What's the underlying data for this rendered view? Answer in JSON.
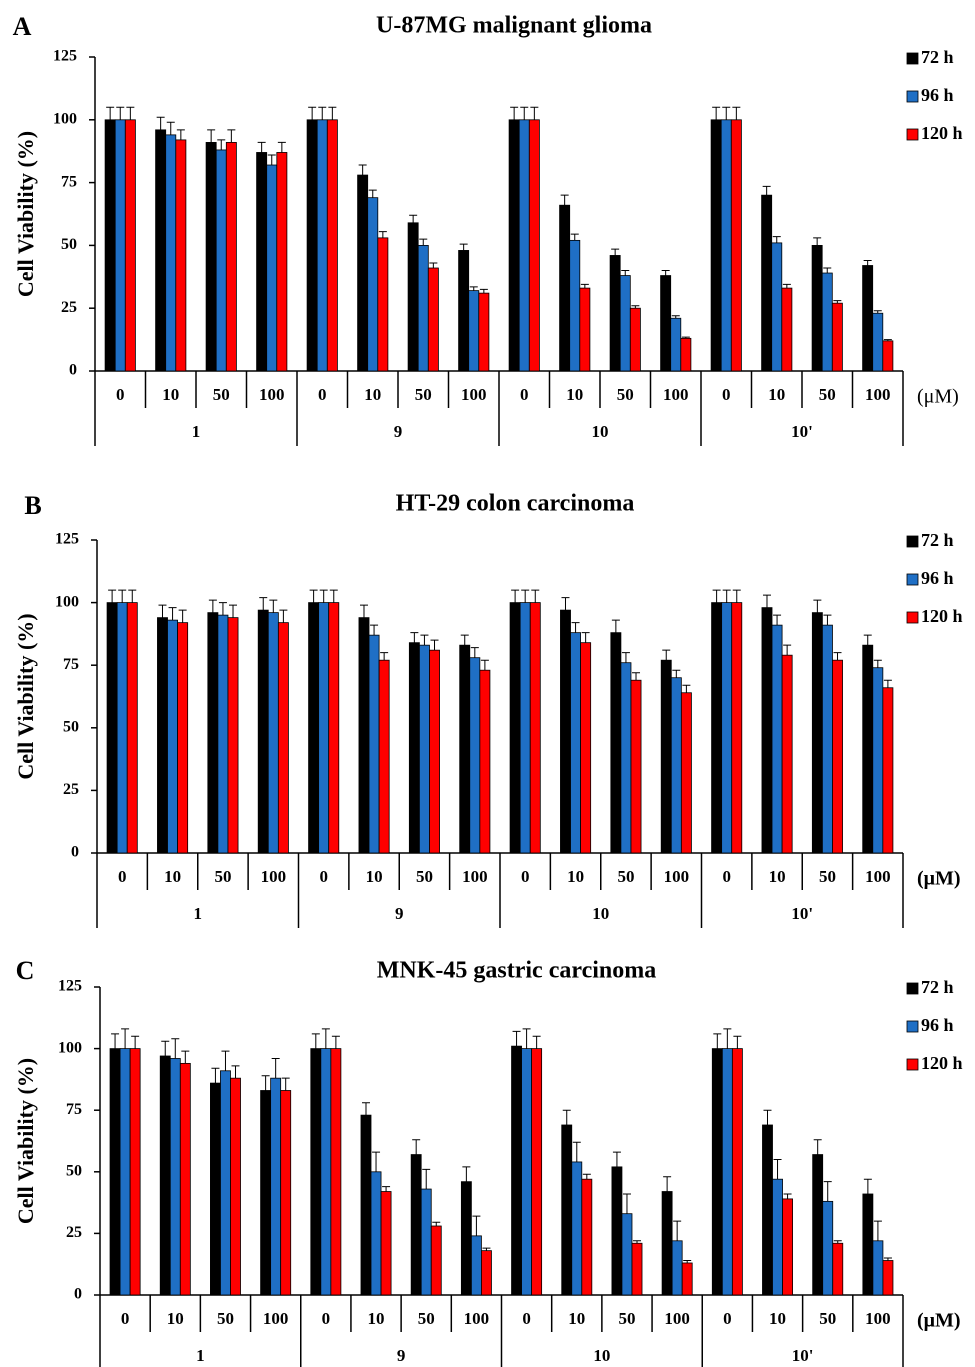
{
  "chart_data": [
    {
      "type": "bar",
      "panel": "A",
      "title": "U-87MG malignant glioma",
      "ylabel": "Cell Viability (%)",
      "unit": "(μM)",
      "unit_bold": false,
      "categories": [
        "0",
        "10",
        "50",
        "100",
        "0",
        "10",
        "50",
        "100",
        "0",
        "10",
        "50",
        "100",
        "0",
        "10",
        "50",
        "100"
      ],
      "groups": [
        "1",
        "9",
        "10",
        "10'"
      ],
      "ylim": [
        0,
        125
      ],
      "yticks": [
        0,
        25,
        50,
        75,
        100,
        125
      ],
      "series": [
        {
          "name": "72 h",
          "color": "#000000",
          "values": [
            100,
            96,
            91,
            87,
            100,
            78,
            59,
            48,
            100,
            66,
            46,
            38,
            100,
            70,
            50,
            42
          ],
          "errors": [
            5,
            5,
            5,
            4,
            5,
            4,
            3,
            2.5,
            5,
            4,
            2.5,
            2,
            5,
            3.5,
            3,
            2
          ]
        },
        {
          "name": "96 h",
          "color": "#1f6fc5",
          "values": [
            100,
            94,
            88,
            82,
            100,
            69,
            50,
            32,
            100,
            52,
            38,
            21,
            100,
            51,
            39,
            23
          ],
          "errors": [
            5,
            5,
            4,
            4,
            5,
            3,
            2.5,
            1.5,
            5,
            2.5,
            2,
            1,
            5,
            2.5,
            2,
            1
          ]
        },
        {
          "name": "120 h",
          "color": "#ff0000",
          "values": [
            100,
            92,
            91,
            87,
            100,
            53,
            41,
            31,
            100,
            33,
            25,
            13,
            100,
            33,
            27,
            12
          ],
          "errors": [
            5,
            4,
            5,
            4,
            5,
            2.5,
            2,
            1.5,
            5,
            1.5,
            1,
            0.5,
            5,
            1.5,
            1,
            0.5
          ]
        }
      ]
    },
    {
      "type": "bar",
      "panel": "B",
      "title": "HT-29 colon carcinoma",
      "ylabel": "Cell Viability (%)",
      "unit": "(μM)",
      "unit_bold": true,
      "categories": [
        "0",
        "10",
        "50",
        "100",
        "0",
        "10",
        "50",
        "100",
        "0",
        "10",
        "50",
        "100",
        "0",
        "10",
        "50",
        "100"
      ],
      "groups": [
        "1",
        "9",
        "10",
        "10'"
      ],
      "ylim": [
        0,
        125
      ],
      "yticks": [
        0,
        25,
        50,
        75,
        100,
        125
      ],
      "series": [
        {
          "name": "72 h",
          "color": "#000000",
          "values": [
            100,
            94,
            96,
            97,
            100,
            94,
            84,
            83,
            100,
            97,
            88,
            77,
            100,
            98,
            96,
            83
          ],
          "errors": [
            5,
            5,
            5,
            5,
            5,
            5,
            4,
            4,
            5,
            5,
            5,
            4,
            5,
            5,
            5,
            4
          ]
        },
        {
          "name": "96 h",
          "color": "#1f6fc5",
          "values": [
            100,
            93,
            95,
            96,
            100,
            87,
            83,
            78,
            100,
            88,
            76,
            70,
            100,
            91,
            91,
            74
          ],
          "errors": [
            5,
            5,
            5,
            5,
            5,
            4,
            4,
            4,
            5,
            4,
            4,
            3,
            5,
            4,
            4,
            3
          ]
        },
        {
          "name": "120 h",
          "color": "#ff0000",
          "values": [
            100,
            92,
            94,
            92,
            100,
            77,
            81,
            73,
            100,
            84,
            69,
            64,
            100,
            79,
            77,
            66
          ],
          "errors": [
            5,
            5,
            5,
            5,
            5,
            3,
            4,
            4,
            5,
            4,
            3,
            3,
            5,
            4,
            3,
            3
          ]
        }
      ]
    },
    {
      "type": "bar",
      "panel": "C",
      "title": "MNK-45 gastric carcinoma",
      "ylabel": "Cell Viability (%)",
      "unit": "(μM)",
      "unit_bold": true,
      "categories": [
        "0",
        "10",
        "50",
        "100",
        "0",
        "10",
        "50",
        "100",
        "0",
        "10",
        "50",
        "100",
        "0",
        "10",
        "50",
        "100"
      ],
      "groups": [
        "1",
        "9",
        "10",
        "10'"
      ],
      "ylim": [
        0,
        125
      ],
      "yticks": [
        0,
        25,
        50,
        75,
        100,
        125
      ],
      "series": [
        {
          "name": "72 h",
          "color": "#000000",
          "values": [
            100,
            97,
            86,
            83,
            100,
            73,
            57,
            46,
            101,
            69,
            52,
            42,
            100,
            69,
            57,
            41
          ],
          "errors": [
            6,
            6,
            6,
            6,
            6,
            5,
            6,
            6,
            6,
            6,
            6,
            6,
            6,
            6,
            6,
            6
          ]
        },
        {
          "name": "96 h",
          "color": "#1f6fc5",
          "values": [
            100,
            96,
            91,
            88,
            100,
            50,
            43,
            24,
            100,
            54,
            33,
            22,
            100,
            47,
            38,
            22
          ],
          "errors": [
            8,
            8,
            8,
            8,
            8,
            8,
            8,
            8,
            8,
            8,
            8,
            8,
            8,
            8,
            8,
            8
          ]
        },
        {
          "name": "120 h",
          "color": "#ff0000",
          "values": [
            100,
            94,
            88,
            83,
            100,
            42,
            28,
            18,
            100,
            47,
            21,
            13,
            100,
            39,
            21,
            14
          ],
          "errors": [
            5,
            5,
            5,
            5,
            5,
            2,
            1.5,
            1,
            5,
            2,
            1,
            1,
            5,
            2,
            1,
            1
          ]
        }
      ]
    }
  ]
}
